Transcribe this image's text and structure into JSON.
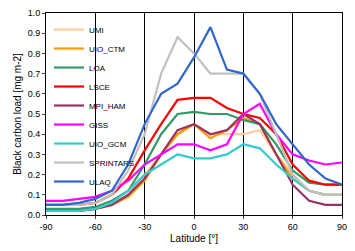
{
  "chart_data": {
    "type": "line",
    "x_label": "Latitude [°]",
    "y_label": "Black carbon load [mg m-2]",
    "x": [
      -90,
      -80,
      -70,
      -60,
      -50,
      -40,
      -30,
      -20,
      -10,
      0,
      10,
      20,
      30,
      40,
      50,
      60,
      70,
      80,
      90
    ],
    "series": [
      {
        "name": "UMI",
        "color": "#FFCC99",
        "values": [
          0.02,
          0.02,
          0.02,
          0.03,
          0.05,
          0.1,
          0.2,
          0.3,
          0.4,
          0.45,
          0.4,
          0.4,
          0.4,
          0.42,
          0.3,
          0.2,
          0.12,
          0.1,
          0.1
        ]
      },
      {
        "name": "UIO_CTM",
        "color": "#FF9900",
        "values": [
          0.02,
          0.02,
          0.02,
          0.03,
          0.05,
          0.09,
          0.17,
          0.3,
          0.4,
          0.45,
          0.38,
          0.42,
          0.48,
          0.45,
          0.3,
          0.18,
          0.12,
          0.1,
          0.1
        ]
      },
      {
        "name": "LOA",
        "color": "#339966",
        "values": [
          0.03,
          0.03,
          0.03,
          0.04,
          0.07,
          0.12,
          0.25,
          0.4,
          0.5,
          0.51,
          0.5,
          0.5,
          0.47,
          0.45,
          0.35,
          0.22,
          0.16,
          0.15,
          0.15
        ]
      },
      {
        "name": "LSCE",
        "color": "#FF0000",
        "values": [
          0.05,
          0.05,
          0.05,
          0.06,
          0.1,
          0.18,
          0.32,
          0.45,
          0.57,
          0.58,
          0.58,
          0.53,
          0.5,
          0.48,
          0.4,
          0.25,
          0.17,
          0.15,
          0.15
        ]
      },
      {
        "name": "MPI_HAM",
        "color": "#993366",
        "values": [
          0.02,
          0.02,
          0.02,
          0.03,
          0.05,
          0.1,
          0.18,
          0.3,
          0.42,
          0.45,
          0.4,
          0.42,
          0.5,
          0.45,
          0.3,
          0.15,
          0.07,
          0.05,
          0.05
        ]
      },
      {
        "name": "GISS",
        "color": "#FF00FF",
        "values": [
          0.07,
          0.07,
          0.08,
          0.09,
          0.12,
          0.17,
          0.25,
          0.3,
          0.35,
          0.35,
          0.32,
          0.35,
          0.5,
          0.55,
          0.4,
          0.3,
          0.27,
          0.25,
          0.26
        ]
      },
      {
        "name": "UIO_GCM",
        "color": "#33CCCC",
        "values": [
          0.02,
          0.02,
          0.02,
          0.03,
          0.06,
          0.12,
          0.2,
          0.25,
          0.3,
          0.28,
          0.28,
          0.3,
          0.35,
          0.33,
          0.25,
          0.18,
          0.12,
          0.1,
          0.1
        ]
      },
      {
        "name": "SPRINTARS",
        "color": "#C0C0C0",
        "values": [
          0.05,
          0.05,
          0.05,
          0.06,
          0.1,
          0.22,
          0.4,
          0.7,
          0.88,
          0.8,
          0.7,
          0.7,
          0.7,
          0.6,
          0.4,
          0.2,
          0.12,
          0.1,
          0.1
        ]
      },
      {
        "name": "ULAQ",
        "color": "#3366CC",
        "values": [
          0.05,
          0.05,
          0.06,
          0.08,
          0.12,
          0.25,
          0.45,
          0.6,
          0.65,
          0.78,
          0.93,
          0.72,
          0.7,
          0.6,
          0.45,
          0.35,
          0.25,
          0.18,
          0.15
        ]
      }
    ],
    "xlim": [
      -90,
      90
    ],
    "xticks": [
      -90,
      -60,
      -30,
      0,
      30,
      60,
      90
    ],
    "ylim": [
      0,
      1
    ],
    "yticks": [
      {
        "value": 0,
        "label": "0.0"
      },
      {
        "value": 0.1,
        "label": "0.1"
      },
      {
        "value": 0.2,
        "label": "0.2"
      },
      {
        "value": 0.3,
        "label": "0.3"
      },
      {
        "value": 0.4,
        "label": "0.4"
      },
      {
        "value": 0.5,
        "label": "0.5"
      },
      {
        "value": 0.6,
        "label": "0.6"
      },
      {
        "value": 0.7,
        "label": "0.7"
      },
      {
        "value": 0.8,
        "label": "0.8"
      },
      {
        "value": 0.9,
        "label": "0.9"
      },
      {
        "value": 1,
        "label": "1.0"
      }
    ],
    "grid": true,
    "legend": "top-left"
  }
}
